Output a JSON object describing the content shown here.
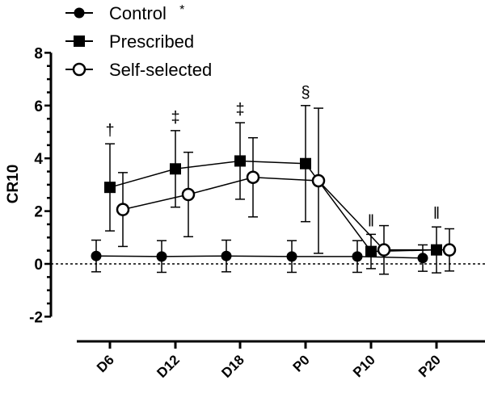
{
  "chart_data": {
    "type": "line",
    "title": "",
    "xlabel": "",
    "ylabel": "CR10",
    "ylim": [
      -2,
      8
    ],
    "yticks": [
      "-2",
      "0",
      "2",
      "4",
      "6",
      "8"
    ],
    "categories": [
      "D6",
      "D12",
      "D18",
      "P0",
      "P10",
      "P20"
    ],
    "reference_line": {
      "y": 0,
      "style": "dotted"
    },
    "legend_position": "top-left",
    "series": [
      {
        "name": "Control",
        "name_suffix": "*",
        "marker": "filled-circle",
        "values": [
          0.3,
          0.28,
          0.3,
          0.28,
          0.28,
          0.22
        ],
        "sd": [
          0.6,
          0.6,
          0.6,
          0.6,
          0.6,
          0.5
        ]
      },
      {
        "name": "Prescribed",
        "marker": "filled-square",
        "values": [
          2.9,
          3.6,
          3.9,
          3.8,
          0.47,
          0.53
        ],
        "sd": [
          1.65,
          1.45,
          1.45,
          2.2,
          0.65,
          0.87
        ]
      },
      {
        "name": "Self-selected",
        "marker": "open-circle",
        "values": [
          2.06,
          2.63,
          3.28,
          3.15,
          0.53,
          0.53
        ],
        "sd": [
          1.4,
          1.6,
          1.5,
          2.75,
          0.92,
          0.8
        ]
      }
    ],
    "annotations": [
      "†",
      "‡",
      "‡",
      "§",
      "‖",
      "‖"
    ]
  }
}
